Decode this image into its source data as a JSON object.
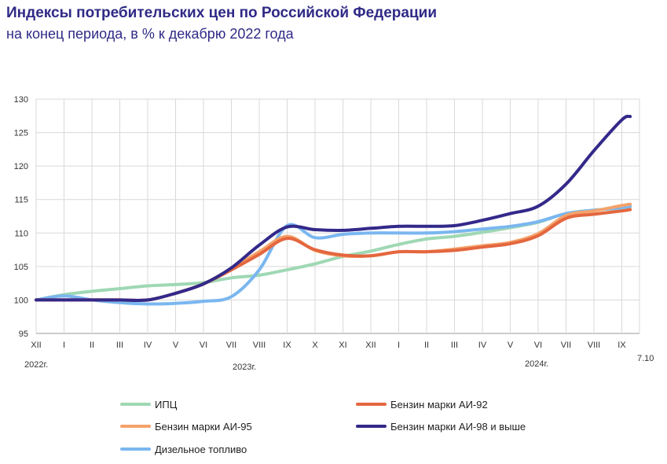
{
  "title": "Индексы потребительских цен по Российской Федерации",
  "subtitle": "на конец периода, в % к декабрю 2022 года",
  "chart_data": {
    "type": "line",
    "ylim": [
      95,
      130
    ],
    "yticks": [
      "95",
      "100",
      "105",
      "110",
      "115",
      "120",
      "125",
      "130"
    ],
    "categories": [
      "XII",
      "I",
      "II",
      "III",
      "IV",
      "V",
      "VI",
      "VII",
      "VIII",
      "IX",
      "X",
      "XI",
      "XII",
      "I",
      "II",
      "III",
      "IV",
      "V",
      "VI",
      "VII",
      "VIII",
      "IX"
    ],
    "year_labels": [
      "2022г.",
      "2023г.",
      "2024г."
    ],
    "last_point_label": "7.10",
    "grid": true,
    "legend_position": "bottom",
    "series": [
      {
        "name": "ИПЦ",
        "color": "#9fd8b4",
        "x": [
          0,
          1,
          2,
          3,
          4,
          5,
          6,
          7,
          8,
          9,
          10,
          11,
          12,
          13,
          14,
          15,
          16,
          17,
          18,
          19,
          20,
          21,
          21.3
        ],
        "values": [
          100,
          100.8,
          101.3,
          101.7,
          102.1,
          102.3,
          102.6,
          103.3,
          103.7,
          104.5,
          105.4,
          106.5,
          107.3,
          108.3,
          109.1,
          109.5,
          110.1,
          110.8,
          111.6,
          112.9,
          113.4,
          113.7,
          113.9
        ]
      },
      {
        "name": "Бензин марки АИ-92",
        "color": "#e4673f",
        "x": [
          0,
          1,
          2,
          3,
          4,
          5,
          6,
          7,
          8,
          9,
          10,
          11,
          12,
          13,
          14,
          15,
          16,
          17,
          18,
          19,
          20,
          21,
          21.3
        ],
        "values": [
          100,
          100,
          100,
          100,
          100,
          101,
          102.4,
          104.5,
          106.8,
          109.2,
          107.5,
          106.7,
          106.6,
          107.2,
          107.2,
          107.4,
          107.9,
          108.4,
          109.6,
          112.2,
          112.8,
          113.3,
          113.5
        ]
      },
      {
        "name": "Бензин марки АИ-95",
        "color": "#f5a26a",
        "x": [
          0,
          1,
          2,
          3,
          4,
          5,
          6,
          7,
          8,
          9,
          10,
          11,
          12,
          13,
          14,
          15,
          16,
          17,
          18,
          19,
          20,
          21,
          21.3
        ],
        "values": [
          100,
          100,
          100,
          100,
          100,
          101,
          102.4,
          104.7,
          107.2,
          109.5,
          107.4,
          106.6,
          106.6,
          107.2,
          107.2,
          107.6,
          108.1,
          108.6,
          109.9,
          112.6,
          113.3,
          114.1,
          114.3
        ]
      },
      {
        "name": "Бензин марки АИ-98 и выше",
        "color": "#33298a",
        "x": [
          0,
          1,
          2,
          3,
          4,
          5,
          6,
          7,
          8,
          9,
          10,
          11,
          12,
          13,
          14,
          15,
          16,
          17,
          18,
          19,
          20,
          21,
          21.3
        ],
        "values": [
          100,
          100,
          100,
          100,
          100,
          101,
          102.4,
          104.8,
          108.2,
          110.9,
          110.5,
          110.4,
          110.7,
          111,
          111,
          111.1,
          111.9,
          112.9,
          114,
          117.3,
          122.3,
          126.9,
          127.4
        ]
      },
      {
        "name": "Дизельное топливо",
        "color": "#7ab7f0",
        "x": [
          0,
          1,
          2,
          3,
          4,
          5,
          6,
          7,
          8,
          9,
          10,
          11,
          12,
          13,
          14,
          15,
          16,
          17,
          18,
          19,
          20,
          21,
          21.3
        ],
        "values": [
          100,
          100.6,
          100,
          99.6,
          99.4,
          99.5,
          99.8,
          100.5,
          104.5,
          111.1,
          109.3,
          109.8,
          110,
          110,
          110,
          110.2,
          110.6,
          111,
          111.7,
          112.9,
          113.4,
          113.8,
          114
        ]
      }
    ]
  }
}
